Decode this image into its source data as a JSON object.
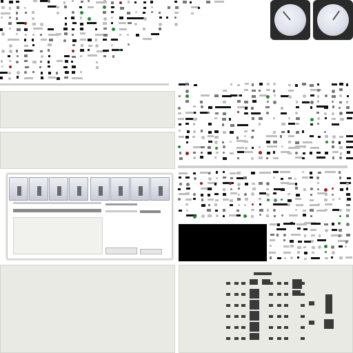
{
  "sheet": {
    "gauges": [
      {
        "name": "gauge-left"
      },
      {
        "name": "gauge-right"
      }
    ],
    "accent_colors": {
      "dark": "#111111",
      "mid": "#777777",
      "light": "#bdbdbd",
      "green": "#1f8a2b",
      "red": "#a21616",
      "panel": "#e9eae4",
      "black_panel": "#000000"
    }
  }
}
